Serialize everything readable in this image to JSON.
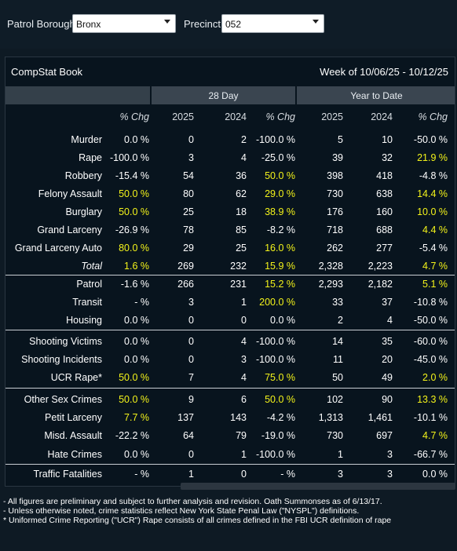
{
  "filters": {
    "borough_label": "Patrol Borough:",
    "borough_value": "Bronx",
    "precinct_label": "Precinct:",
    "precinct_value": "052"
  },
  "panel": {
    "title": "CompStat Book",
    "week": "Week of 10/06/25 - 10/12/25",
    "group_28": "28 Day",
    "group_ytd": "Year to Date"
  },
  "header": [
    "% Chg",
    "2025",
    "2024",
    "% Chg",
    "2025",
    "2024",
    "% Chg"
  ],
  "rows": [
    {
      "label": "Murder",
      "vals": [
        "0.0 %",
        "0",
        "2",
        "-100.0 %",
        "5",
        "10",
        "-50.0 %"
      ],
      "hl": [
        false,
        false,
        false,
        false,
        false,
        false,
        false
      ]
    },
    {
      "label": "Rape",
      "vals": [
        "-100.0 %",
        "3",
        "4",
        "-25.0 %",
        "39",
        "32",
        "21.9 %"
      ],
      "hl": [
        false,
        false,
        false,
        false,
        false,
        false,
        true
      ]
    },
    {
      "label": "Robbery",
      "vals": [
        "-15.4 %",
        "54",
        "36",
        "50.0 %",
        "398",
        "418",
        "-4.8 %"
      ],
      "hl": [
        false,
        false,
        false,
        true,
        false,
        false,
        false
      ]
    },
    {
      "label": "Felony Assault",
      "vals": [
        "50.0 %",
        "80",
        "62",
        "29.0 %",
        "730",
        "638",
        "14.4 %"
      ],
      "hl": [
        true,
        false,
        false,
        true,
        false,
        false,
        true
      ]
    },
    {
      "label": "Burglary",
      "vals": [
        "50.0 %",
        "25",
        "18",
        "38.9 %",
        "176",
        "160",
        "10.0 %"
      ],
      "hl": [
        true,
        false,
        false,
        true,
        false,
        false,
        true
      ]
    },
    {
      "label": "Grand Larceny",
      "vals": [
        "-26.9 %",
        "78",
        "85",
        "-8.2 %",
        "718",
        "688",
        "4.4 %"
      ],
      "hl": [
        false,
        false,
        false,
        false,
        false,
        false,
        true
      ]
    },
    {
      "label": "Grand Larceny Auto",
      "vals": [
        "80.0 %",
        "29",
        "25",
        "16.0 %",
        "262",
        "277",
        "-5.4 %"
      ],
      "hl": [
        true,
        false,
        false,
        true,
        false,
        false,
        false
      ]
    },
    {
      "label": "Total",
      "italic": true,
      "vals": [
        "1.6 %",
        "269",
        "232",
        "15.9 %",
        "2,328",
        "2,223",
        "4.7 %"
      ],
      "hl": [
        true,
        false,
        false,
        true,
        false,
        false,
        true
      ]
    },
    {
      "label": "Patrol",
      "vals": [
        "-1.6 %",
        "266",
        "231",
        "15.2 %",
        "2,293",
        "2,182",
        "5.1 %"
      ],
      "hl": [
        false,
        false,
        false,
        true,
        false,
        false,
        true
      ]
    },
    {
      "label": "Transit",
      "vals": [
        "- %",
        "3",
        "1",
        "200.0 %",
        "33",
        "37",
        "-10.8 %"
      ],
      "hl": [
        false,
        false,
        false,
        true,
        false,
        false,
        false
      ]
    },
    {
      "label": "Housing",
      "vals": [
        "0.0 %",
        "0",
        "0",
        "0.0 %",
        "2",
        "4",
        "-50.0 %"
      ],
      "hl": [
        false,
        false,
        false,
        false,
        false,
        false,
        false
      ]
    },
    {
      "label": "Shooting Victims",
      "vals": [
        "0.0 %",
        "0",
        "4",
        "-100.0 %",
        "14",
        "35",
        "-60.0 %"
      ],
      "hl": [
        false,
        false,
        false,
        false,
        false,
        false,
        false
      ]
    },
    {
      "label": "Shooting Incidents",
      "vals": [
        "0.0 %",
        "0",
        "3",
        "-100.0 %",
        "11",
        "20",
        "-45.0 %"
      ],
      "hl": [
        false,
        false,
        false,
        false,
        false,
        false,
        false
      ]
    },
    {
      "label": "UCR Rape*",
      "vals": [
        "50.0 %",
        "7",
        "4",
        "75.0 %",
        "50",
        "49",
        "2.0 %"
      ],
      "hl": [
        true,
        false,
        false,
        true,
        false,
        false,
        true
      ]
    },
    {
      "label": "Other Sex Crimes",
      "vals": [
        "50.0 %",
        "9",
        "6",
        "50.0 %",
        "102",
        "90",
        "13.3 %"
      ],
      "hl": [
        true,
        false,
        false,
        true,
        false,
        false,
        true
      ]
    },
    {
      "label": "Petit Larceny",
      "vals": [
        "7.7 %",
        "137",
        "143",
        "-4.2 %",
        "1,313",
        "1,461",
        "-10.1 %"
      ],
      "hl": [
        true,
        false,
        false,
        false,
        false,
        false,
        false
      ]
    },
    {
      "label": "Misd. Assault",
      "vals": [
        "-22.2 %",
        "64",
        "79",
        "-19.0 %",
        "730",
        "697",
        "4.7 %"
      ],
      "hl": [
        false,
        false,
        false,
        false,
        false,
        false,
        true
      ]
    },
    {
      "label": "Hate Crimes",
      "vals": [
        "0.0 %",
        "0",
        "1",
        "-100.0 %",
        "1",
        "3",
        "-66.7 %"
      ],
      "hl": [
        false,
        false,
        false,
        false,
        false,
        false,
        false
      ]
    },
    {
      "label": "Traffic Fatalities",
      "vals": [
        "- %",
        "1",
        "0",
        "- %",
        "3",
        "3",
        "0.0 %"
      ],
      "hl": [
        false,
        false,
        false,
        false,
        false,
        false,
        false
      ]
    }
  ],
  "footnotes": [
    "- All figures are preliminary and subject to further analysis and revision. Oath Summonses as of 6/13/17.",
    "- Unless otherwise noted, crime statistics reflect New York State Penal Law (\"NYSPL\") definitions.",
    "* Uniformed Crime Reporting (\"UCR\") Rape consists of all crimes defined in the FBI UCR definition of rape"
  ],
  "colors": {
    "highlight": "#f3f31a",
    "text": "#ffffff",
    "panel": "#08141e",
    "header_band": "#3a4550"
  }
}
